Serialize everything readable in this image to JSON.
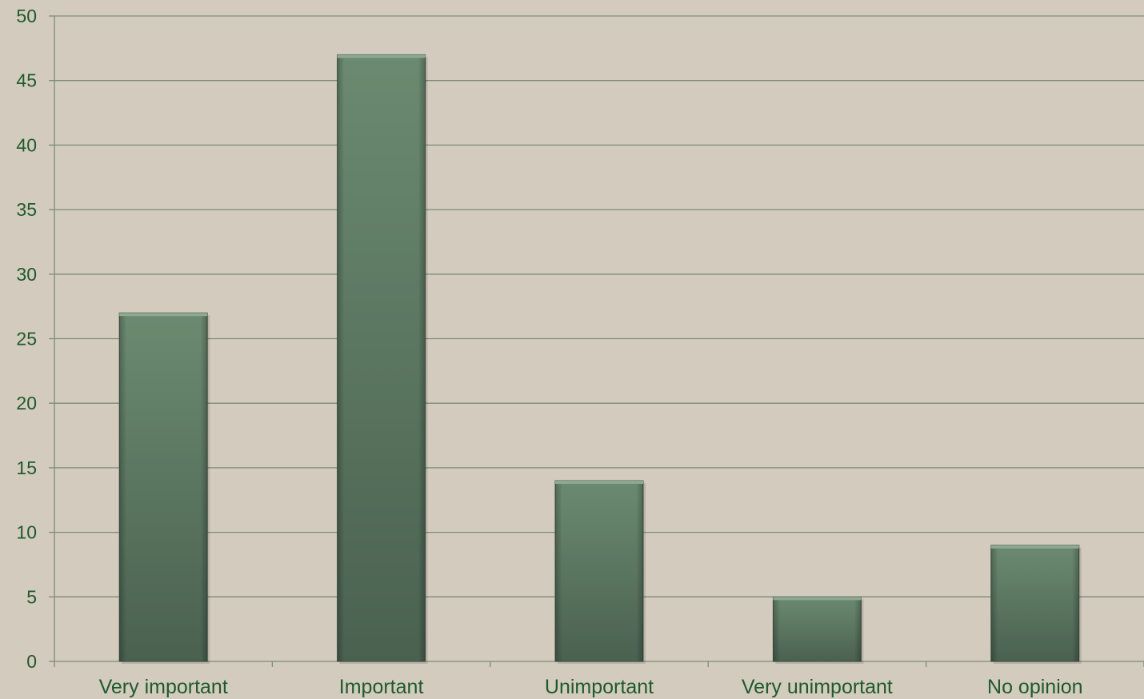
{
  "chart_data": {
    "type": "bar",
    "title": "",
    "xlabel": "",
    "ylabel": "",
    "categories": [
      "Very important",
      "Important",
      "Unimportant",
      "Very unimportant",
      "No opinion"
    ],
    "values": [
      27,
      47,
      14,
      5,
      9
    ],
    "ylim": [
      0,
      50
    ],
    "yticks": [
      0,
      5,
      10,
      15,
      20,
      25,
      30,
      35,
      40,
      45,
      50
    ],
    "grid": true,
    "legend": "none",
    "colors": {
      "background": "#d3cbbd",
      "bar_top": "#6b8a70",
      "bar_bottom": "#4a6150",
      "grid": "#7d8c78",
      "text": "#1f5a2e"
    }
  }
}
